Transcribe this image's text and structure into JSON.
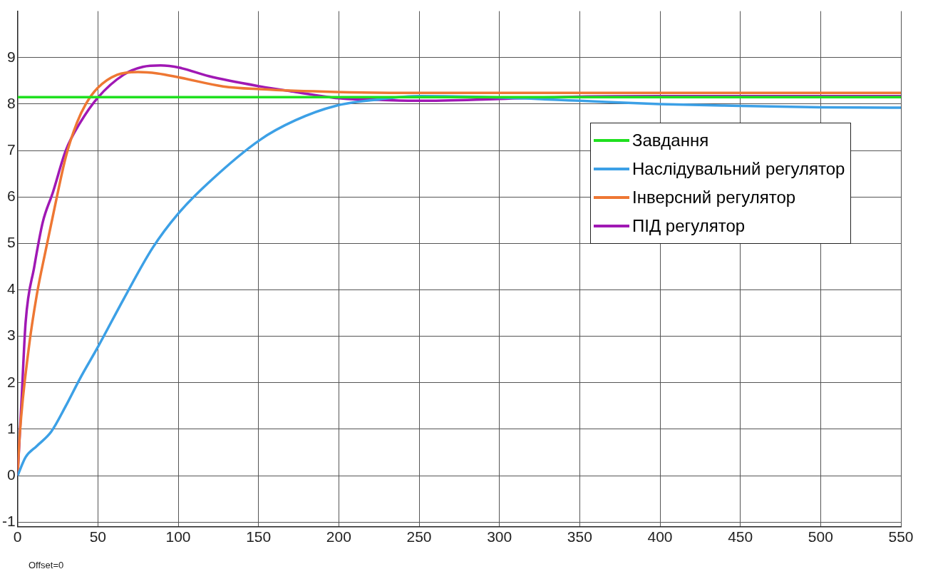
{
  "chart_data": {
    "type": "line",
    "xlim": [
      0,
      550
    ],
    "xticks": [
      0,
      50,
      100,
      150,
      200,
      250,
      300,
      350,
      400,
      450,
      500,
      550
    ],
    "ylim": [
      -1.1,
      10
    ],
    "yticks": [
      -1,
      0,
      1,
      2,
      3,
      4,
      5,
      6,
      7,
      8,
      9
    ],
    "grid": true,
    "legend": "right",
    "marker": "none",
    "line_style": "solid",
    "annotations": [
      "Offset=0"
    ],
    "series": [
      {
        "name": "Завдання",
        "color": "#1fe01f",
        "x": [
          0,
          550
        ],
        "values": [
          8.15,
          8.15
        ]
      },
      {
        "name": "Наслідувальний регулятор",
        "color": "#3ca0e6",
        "x": [
          0,
          5,
          12,
          21,
          30,
          39,
          50,
          66,
          84,
          100,
          119,
          151,
          173,
          198,
          225,
          250,
          300,
          350,
          400,
          450,
          500,
          550
        ],
        "values": [
          0,
          0.4,
          0.64,
          0.95,
          1.5,
          2.1,
          2.77,
          3.8,
          4.9,
          5.64,
          6.31,
          7.23,
          7.65,
          7.96,
          8.1,
          8.17,
          8.14,
          8.07,
          8.0,
          7.96,
          7.93,
          7.92
        ]
      },
      {
        "name": "Інверсний регулятор",
        "color": "#ee7733",
        "x": [
          0,
          1.4,
          6.8,
          12,
          17.5,
          23,
          30,
          37,
          42.5,
          50,
          62,
          75,
          87,
          101,
          128,
          151,
          198,
          250,
          300,
          400,
          550
        ],
        "values": [
          0,
          0.9,
          2.7,
          3.9,
          4.85,
          5.76,
          6.86,
          7.6,
          8.0,
          8.35,
          8.63,
          8.69,
          8.66,
          8.57,
          8.38,
          8.32,
          8.26,
          8.24,
          8.24,
          8.24,
          8.24
        ]
      },
      {
        "name": "ПІД регулятор",
        "color": "#a018b4",
        "x": [
          0,
          2.3,
          5,
          10.4,
          15.7,
          22,
          30,
          39,
          50,
          66,
          78,
          89,
          101,
          119,
          151,
          173,
          198,
          225,
          250,
          300,
          350,
          400,
          550
        ],
        "values": [
          0,
          1.5,
          3.3,
          4.5,
          5.46,
          6.1,
          7.0,
          7.6,
          8.14,
          8.63,
          8.8,
          8.83,
          8.78,
          8.6,
          8.38,
          8.26,
          8.13,
          8.09,
          8.07,
          8.11,
          8.16,
          8.17,
          8.17
        ]
      }
    ]
  }
}
